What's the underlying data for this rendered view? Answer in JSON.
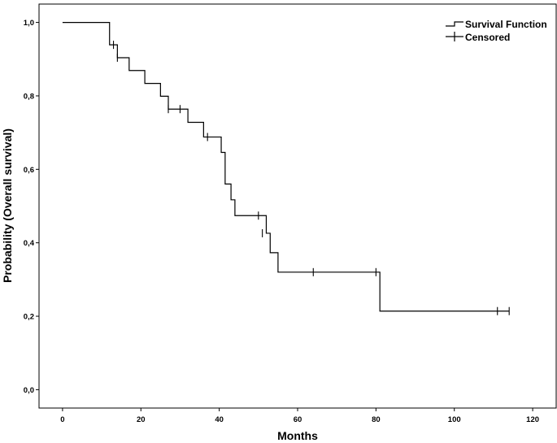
{
  "chart_data": {
    "type": "line",
    "subtype": "kaplan-meier-step",
    "title": "",
    "xlabel": "Months",
    "ylabel": "Probability (Overall survival)",
    "xlim": [
      -6,
      126
    ],
    "ylim": [
      -0.05,
      1.05
    ],
    "x_ticks": [
      0,
      20,
      40,
      60,
      80,
      100,
      120
    ],
    "y_ticks": [
      0.0,
      0.2,
      0.4,
      0.6,
      0.8,
      1.0
    ],
    "x_tick_labels": [
      "0",
      "20",
      "40",
      "60",
      "80",
      "100",
      "120"
    ],
    "y_tick_labels": [
      "0,0",
      "0,2",
      "0,4",
      "0,6",
      "0,8",
      "1,0"
    ],
    "grid": false,
    "legend_position": "top-right",
    "series": [
      {
        "name": "Survival Function",
        "color": "#000000",
        "steps": [
          [
            0,
            1.0
          ],
          [
            12,
            0.939
          ],
          [
            14,
            0.904
          ],
          [
            17,
            0.869
          ],
          [
            21,
            0.834
          ],
          [
            25,
            0.799
          ],
          [
            27,
            0.764
          ],
          [
            32,
            0.728
          ],
          [
            36,
            0.688
          ],
          [
            40.5,
            0.646
          ],
          [
            41.5,
            0.56
          ],
          [
            43,
            0.517
          ],
          [
            44,
            0.474
          ],
          [
            52,
            0.426
          ],
          [
            53,
            0.373
          ],
          [
            55,
            0.32
          ],
          [
            81,
            0.214
          ],
          [
            114,
            0.214
          ]
        ]
      },
      {
        "name": "Censored",
        "color": "#000000",
        "points": [
          [
            13,
            0.939
          ],
          [
            14,
            0.904
          ],
          [
            27,
            0.764
          ],
          [
            30,
            0.764
          ],
          [
            37,
            0.688
          ],
          [
            50,
            0.474
          ],
          [
            51,
            0.426
          ],
          [
            64,
            0.32
          ],
          [
            80,
            0.32
          ],
          [
            111,
            0.214
          ],
          [
            114,
            0.214
          ]
        ]
      }
    ]
  }
}
